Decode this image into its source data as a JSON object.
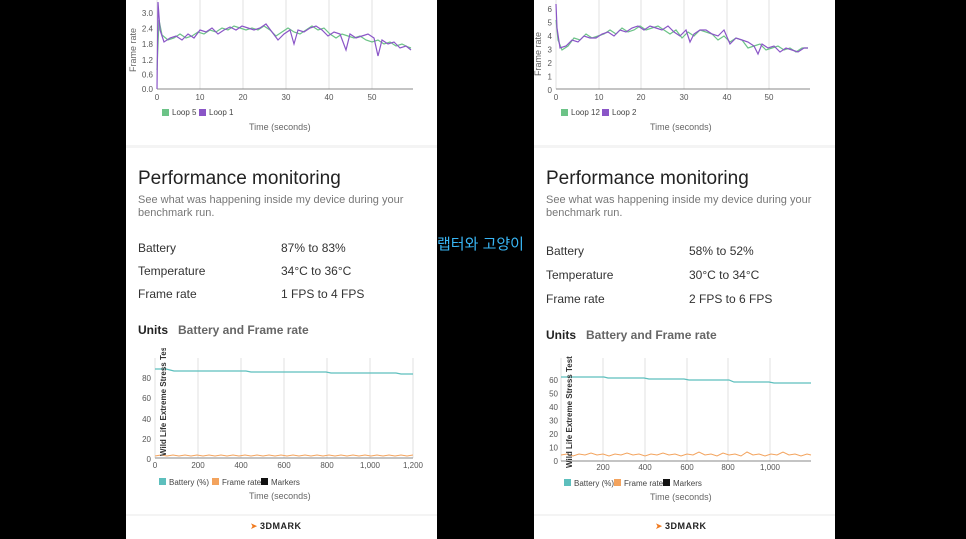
{
  "overlay_text": "랩터와 고양이",
  "brand": "3DMARK",
  "phones": [
    {
      "id": "left",
      "top_chart": {
        "ylabel": "Frame rate",
        "xlabel": "Time (seconds)",
        "yticks": [
          "0.0",
          "0.6",
          "1.2",
          "1.8",
          "2.4",
          "3.0"
        ],
        "xticks": [
          "0",
          "10",
          "20",
          "30",
          "40",
          "50"
        ],
        "legend": [
          {
            "name": "Loop 5",
            "color": "#6cc387"
          },
          {
            "name": "Loop 1",
            "color": "#8a55c7"
          }
        ]
      },
      "perf_title": "Performance monitoring",
      "perf_sub": "See what was happening inside my device during your benchmark run.",
      "stats": [
        {
          "label": "Battery",
          "value": "87% to 83%"
        },
        {
          "label": "Temperature",
          "value": "34°C to 36°C"
        },
        {
          "label": "Frame rate",
          "value": "1 FPS to 4 FPS"
        }
      ],
      "units_label": "Units",
      "units_value": "Battery and Frame rate",
      "bottom_chart": {
        "ylabel": "Wild Life Extreme Stress Test",
        "xlabel": "Time (seconds)",
        "yticks": [
          "0",
          "20",
          "40",
          "60",
          "80"
        ],
        "xticks": [
          "0",
          "200",
          "400",
          "600",
          "800",
          "1,000",
          "1,200"
        ],
        "legend": [
          {
            "name": "Battery (%)",
            "color": "#5dbfbd"
          },
          {
            "name": "Frame rate",
            "color": "#f3a35d"
          },
          {
            "name": "Markers",
            "color": "#111111"
          }
        ]
      }
    },
    {
      "id": "right",
      "top_chart": {
        "ylabel": "Frame rate",
        "xlabel": "Time (seconds)",
        "yticks": [
          "0",
          "1",
          "2",
          "3",
          "4",
          "5",
          "6"
        ],
        "xticks": [
          "0",
          "10",
          "20",
          "30",
          "40",
          "50"
        ],
        "legend": [
          {
            "name": "Loop 12",
            "color": "#6cc387"
          },
          {
            "name": "Loop 2",
            "color": "#8a55c7"
          }
        ]
      },
      "perf_title": "Performance monitoring",
      "perf_sub": "See what was happening inside my device during your benchmark run.",
      "stats": [
        {
          "label": "Battery",
          "value": "58% to 52%"
        },
        {
          "label": "Temperature",
          "value": "30°C to 34°C"
        },
        {
          "label": "Frame rate",
          "value": "2 FPS to 6 FPS"
        }
      ],
      "units_label": "Units",
      "units_value": "Battery and Frame rate",
      "bottom_chart": {
        "ylabel": "Wild Life Extreme Stress Test",
        "xlabel": "Time (seconds)",
        "yticks": [
          "0",
          "10",
          "20",
          "30",
          "40",
          "50",
          "60"
        ],
        "xticks": [
          "200",
          "400",
          "600",
          "800",
          "1,000"
        ],
        "legend": [
          {
            "name": "Battery (%)",
            "color": "#5dbfbd"
          },
          {
            "name": "Frame rate",
            "color": "#f3a35d"
          },
          {
            "name": "Markers",
            "color": "#111111"
          }
        ]
      }
    }
  ]
}
